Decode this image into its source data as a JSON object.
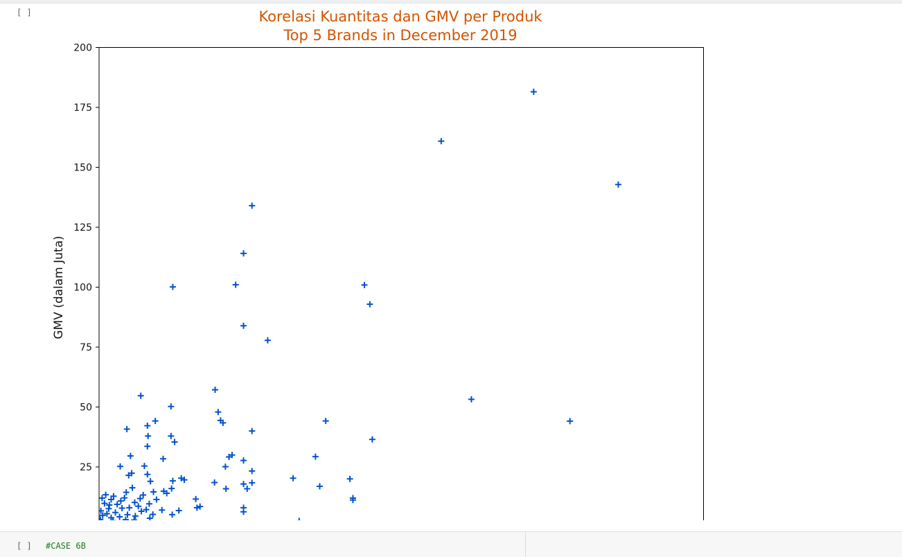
{
  "notebook": {
    "output_cell_bracket": "[ ]",
    "next_cell": {
      "bracket": "[ ]",
      "code": "#CASE 6B"
    }
  },
  "colors": {
    "title": "#d35400",
    "marker": "#0052cc",
    "axis": "#000000"
  },
  "chart_data": {
    "type": "scatter",
    "marker": "+",
    "title_lines": [
      "Korelasi Kuantitas dan GMV per Produk",
      "Top 5 Brands in December 2019"
    ],
    "xlabel": "",
    "ylabel": "GMV (dalam Juta)",
    "xlim": [
      0,
      100
    ],
    "ylim": [
      0,
      200
    ],
    "y_ticks": [
      200,
      175,
      150,
      125,
      100,
      75,
      50,
      25
    ],
    "visible_y_range": [
      2,
      200
    ],
    "x_ticks_visible": false,
    "grid": false,
    "points": [
      [
        71.9,
        181.5
      ],
      [
        56.6,
        160.9
      ],
      [
        85.9,
        142.8
      ],
      [
        25.3,
        134.0
      ],
      [
        23.9,
        114.1
      ],
      [
        12.2,
        100.1
      ],
      [
        22.6,
        101.0
      ],
      [
        43.9,
        100.9
      ],
      [
        44.8,
        92.9
      ],
      [
        23.9,
        83.9
      ],
      [
        27.9,
        77.8
      ],
      [
        61.6,
        53.2
      ],
      [
        77.9,
        44.1
      ],
      [
        6.9,
        54.7
      ],
      [
        19.2,
        57.2
      ],
      [
        11.9,
        50.2
      ],
      [
        19.7,
        47.9
      ],
      [
        20.1,
        44.4
      ],
      [
        20.5,
        43.4
      ],
      [
        37.5,
        44.2
      ],
      [
        25.3,
        40.0
      ],
      [
        45.2,
        36.5
      ],
      [
        9.3,
        44.2
      ],
      [
        8.0,
        42.2
      ],
      [
        8.1,
        37.9
      ],
      [
        11.9,
        37.9
      ],
      [
        12.5,
        35.4
      ],
      [
        4.6,
        40.8
      ],
      [
        8.0,
        33.6
      ],
      [
        5.2,
        29.6
      ],
      [
        10.6,
        28.4
      ],
      [
        21.5,
        29.2
      ],
      [
        22.0,
        30.0
      ],
      [
        35.8,
        29.3
      ],
      [
        23.9,
        27.7
      ],
      [
        3.5,
        25.2
      ],
      [
        7.5,
        25.4
      ],
      [
        20.9,
        25.1
      ],
      [
        25.3,
        23.3
      ],
      [
        5.4,
        22.4
      ],
      [
        8.0,
        21.9
      ],
      [
        4.9,
        21.5
      ],
      [
        13.6,
        20.3
      ],
      [
        14.1,
        19.6
      ],
      [
        32.1,
        20.3
      ],
      [
        41.5,
        20.0
      ],
      [
        8.5,
        19.0
      ],
      [
        12.2,
        19.2
      ],
      [
        19.1,
        18.5
      ],
      [
        25.3,
        18.4
      ],
      [
        23.9,
        17.9
      ],
      [
        36.5,
        16.9
      ],
      [
        24.5,
        15.9
      ],
      [
        21.0,
        15.9
      ],
      [
        10.7,
        14.9
      ],
      [
        12.0,
        16.0
      ],
      [
        11.2,
        14.0
      ],
      [
        16.0,
        11.6
      ],
      [
        16.2,
        8.0
      ],
      [
        16.7,
        8.5
      ],
      [
        23.9,
        8.0
      ],
      [
        23.9,
        6.3
      ],
      [
        42.0,
        12.0
      ],
      [
        42.0,
        11.2
      ],
      [
        10.4,
        7.0
      ],
      [
        13.2,
        6.8
      ],
      [
        12.1,
        5.1
      ],
      [
        33.1,
        2.5
      ],
      [
        5.5,
        16.3
      ],
      [
        4.5,
        14.4
      ],
      [
        4.2,
        12.1
      ],
      [
        5.9,
        10.2
      ],
      [
        7.3,
        13.3
      ],
      [
        6.5,
        8.6
      ],
      [
        3.0,
        9.4
      ],
      [
        2.0,
        11.4
      ],
      [
        1.1,
        13.4
      ],
      [
        0.5,
        12.0
      ],
      [
        0.9,
        9.8
      ],
      [
        1.6,
        7.6
      ],
      [
        2.7,
        6.0
      ],
      [
        3.8,
        7.8
      ],
      [
        4.7,
        5.1
      ],
      [
        6.0,
        4.5
      ],
      [
        7.0,
        6.5
      ],
      [
        8.3,
        9.6
      ],
      [
        9.5,
        11.4
      ],
      [
        8.9,
        5.2
      ],
      [
        2.0,
        3.8
      ],
      [
        0.6,
        4.8
      ],
      [
        1.3,
        5.5
      ],
      [
        3.4,
        4.2
      ],
      [
        4.4,
        3.0
      ],
      [
        5.8,
        2.8
      ],
      [
        0.3,
        6.7
      ],
      [
        1.7,
        9.1
      ],
      [
        2.4,
        12.8
      ],
      [
        3.6,
        10.8
      ],
      [
        5.0,
        8.0
      ],
      [
        6.8,
        11.8
      ],
      [
        7.8,
        7.2
      ],
      [
        0.2,
        3.1
      ],
      [
        2.3,
        2.6
      ],
      [
        8.4,
        3.6
      ],
      [
        9.0,
        14.6
      ]
    ]
  }
}
